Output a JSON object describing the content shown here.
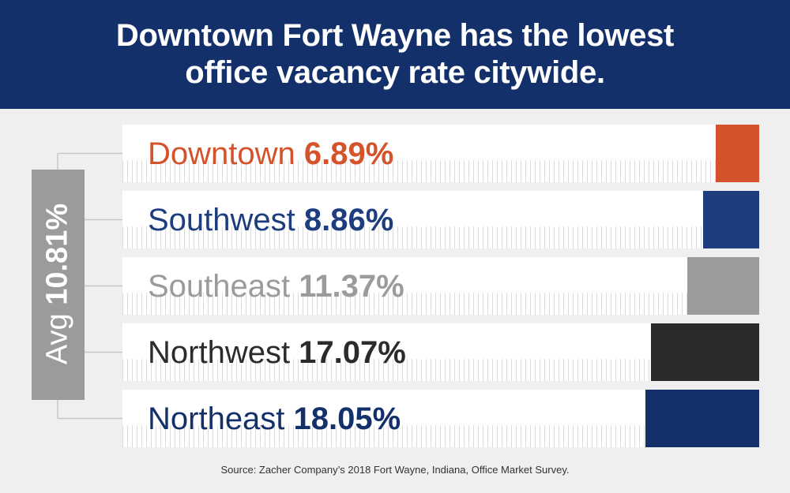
{
  "header": {
    "title": "Downtown Fort Wayne has the lowest office vacancy rate citywide."
  },
  "average": {
    "prefix": "Avg",
    "value_text": "10.81%",
    "color": "#9a9b9d"
  },
  "chart_data": {
    "type": "bar",
    "orientation": "horizontal",
    "title": "Downtown Fort Wayne has the lowest office vacancy rate citywide.",
    "categories": [
      "Downtown",
      "Southwest",
      "Southeast",
      "Northwest",
      "Northeast"
    ],
    "values": [
      6.89,
      8.86,
      11.37,
      17.07,
      18.05
    ],
    "value_labels": [
      "6.89%",
      "8.86%",
      "11.37%",
      "17.07%",
      "18.05%"
    ],
    "colors": [
      "#d4532a",
      "#1d3d7e",
      "#9a9b9d",
      "#2b2b2b",
      "#13306b"
    ],
    "average": 10.81,
    "xlim": [
      0,
      100
    ],
    "grid": false
  },
  "source": "Source: Zacher Company’s 2018 Fort Wayne, Indiana, Office Market Survey."
}
